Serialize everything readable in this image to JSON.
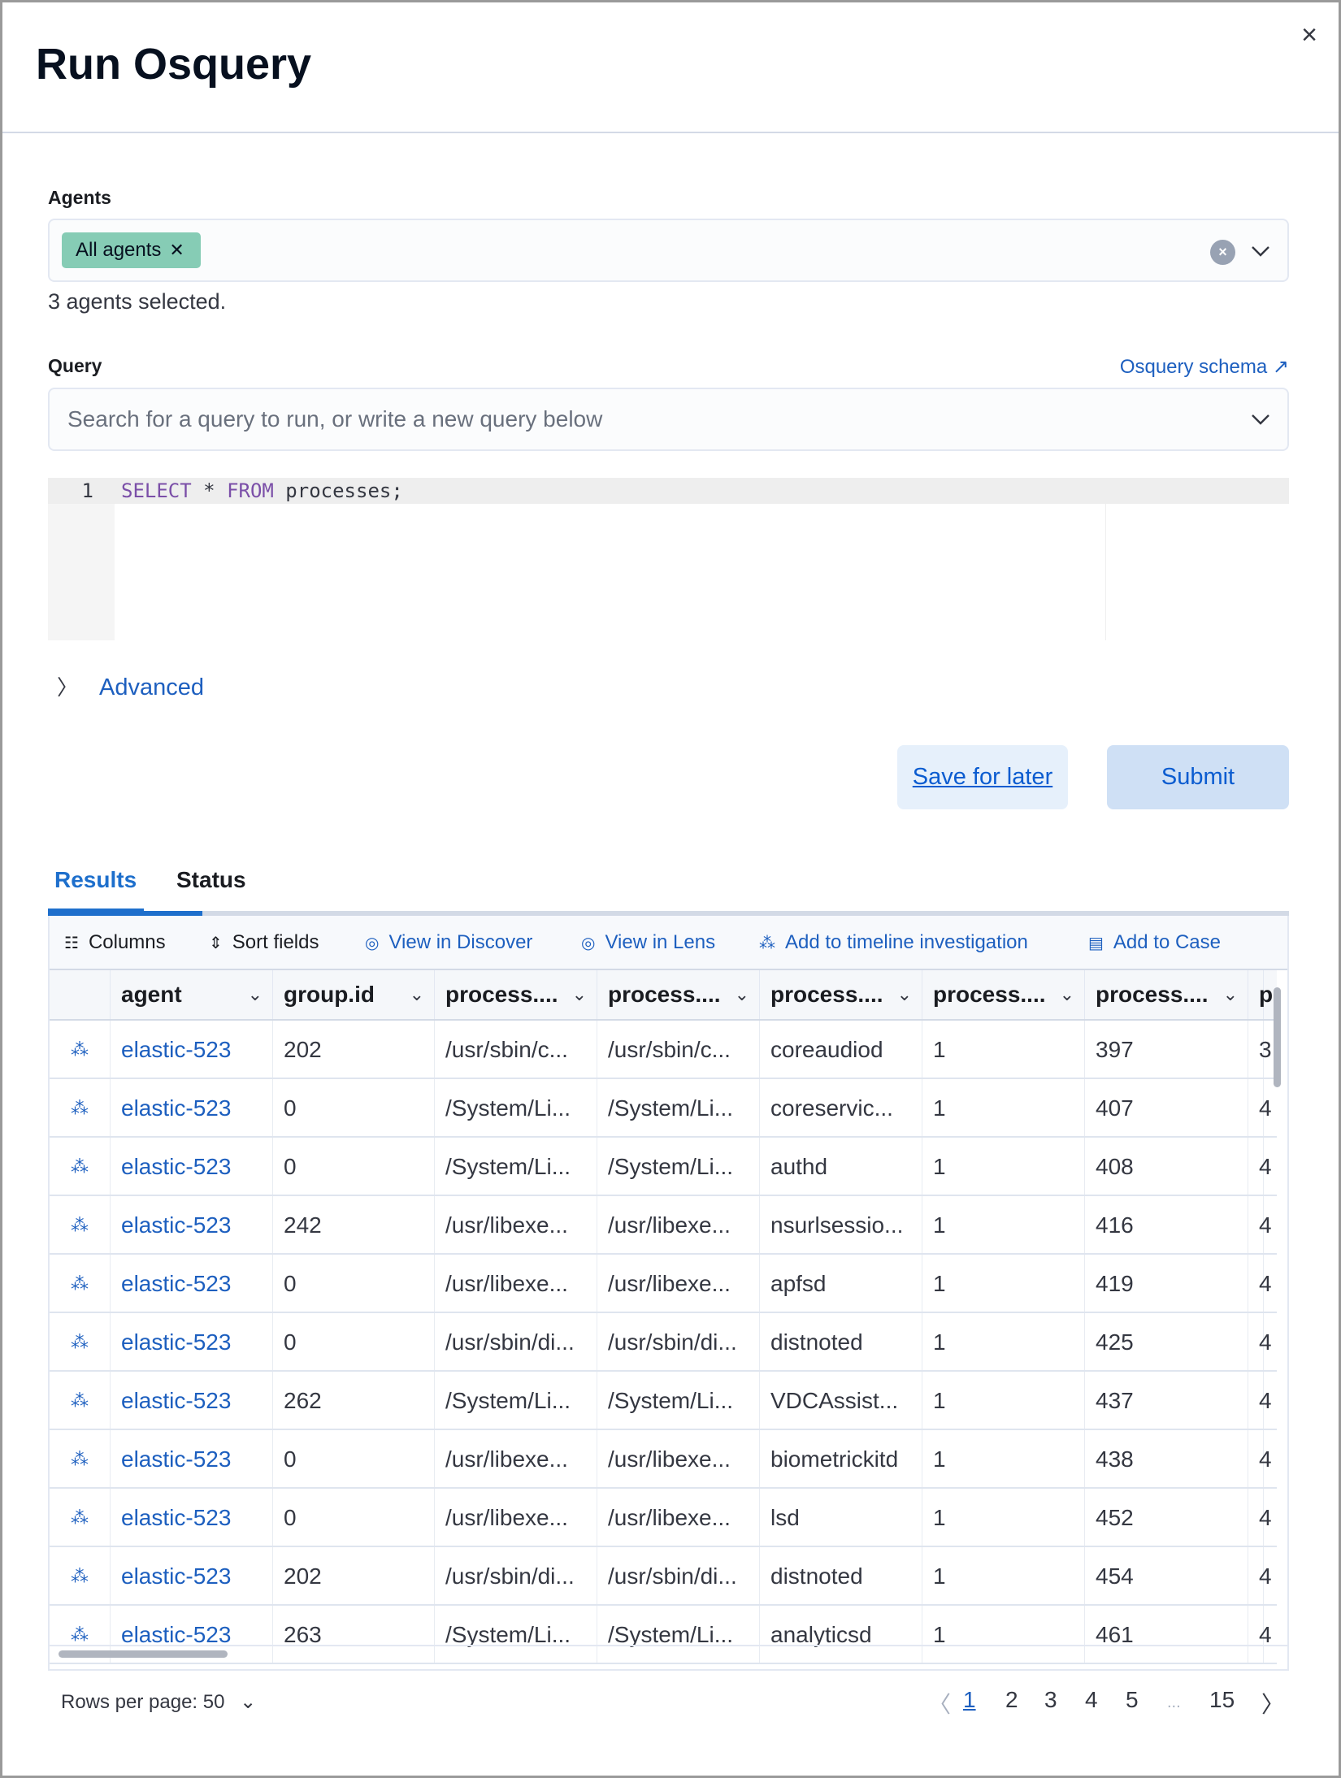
{
  "flyout": {
    "title": "Run Osquery",
    "close_icon": "close-icon"
  },
  "agents": {
    "label": "Agents",
    "selected_pill": "All agents",
    "help_text": "3 agents selected."
  },
  "query": {
    "label": "Query",
    "schema_link": "Osquery schema",
    "search_placeholder": "Search for a query to run, or write a new query below"
  },
  "editor": {
    "line_number": "1",
    "kw1": "SELECT",
    "mid": " * ",
    "kw2": "FROM",
    "rest": " processes;"
  },
  "advanced": {
    "label": "Advanced"
  },
  "buttons": {
    "save": "Save for later",
    "submit": "Submit"
  },
  "tabs": [
    {
      "label": "Results",
      "active": true
    },
    {
      "label": "Status",
      "active": false
    }
  ],
  "toolbar": {
    "columns": "Columns",
    "sort": "Sort fields",
    "discover": "View in Discover",
    "lens": "View in Lens",
    "timeline": "Add to timeline investigation",
    "case": "Add to Case"
  },
  "table": {
    "columns": [
      "agent",
      "group.id",
      "process....",
      "process....",
      "process....",
      "process....",
      "process....",
      "p"
    ],
    "rows": [
      [
        "elastic-523",
        "202",
        "/usr/sbin/c...",
        "/usr/sbin/c...",
        "coreaudiod",
        "1",
        "397",
        "3"
      ],
      [
        "elastic-523",
        "0",
        "/System/Li...",
        "/System/Li...",
        "coreservic...",
        "1",
        "407",
        "4"
      ],
      [
        "elastic-523",
        "0",
        "/System/Li...",
        "/System/Li...",
        "authd",
        "1",
        "408",
        "4"
      ],
      [
        "elastic-523",
        "242",
        "/usr/libexe...",
        "/usr/libexe...",
        "nsurlsessio...",
        "1",
        "416",
        "4"
      ],
      [
        "elastic-523",
        "0",
        "/usr/libexe...",
        "/usr/libexe...",
        "apfsd",
        "1",
        "419",
        "4"
      ],
      [
        "elastic-523",
        "0",
        "/usr/sbin/di...",
        "/usr/sbin/di...",
        "distnoted",
        "1",
        "425",
        "4"
      ],
      [
        "elastic-523",
        "262",
        "/System/Li...",
        "/System/Li...",
        "VDCAssist...",
        "1",
        "437",
        "4"
      ],
      [
        "elastic-523",
        "0",
        "/usr/libexe...",
        "/usr/libexe...",
        "biometrickitd",
        "1",
        "438",
        "4"
      ],
      [
        "elastic-523",
        "0",
        "/usr/libexe...",
        "/usr/libexe...",
        "lsd",
        "1",
        "452",
        "4"
      ],
      [
        "elastic-523",
        "202",
        "/usr/sbin/di...",
        "/usr/sbin/di...",
        "distnoted",
        "1",
        "454",
        "4"
      ],
      [
        "elastic-523",
        "263",
        "/System/Li...",
        "/System/Li...",
        "analyticsd",
        "1",
        "461",
        "4"
      ]
    ]
  },
  "pagination": {
    "rows_per_page": "Rows per page: 50",
    "pages": [
      "1",
      "2",
      "3",
      "4",
      "5",
      "...",
      "15"
    ],
    "active_page": "1"
  },
  "colors": {
    "accent": "#1d5fbf",
    "pill": "#86ccb5",
    "tab_active": "#1e6fcc"
  }
}
